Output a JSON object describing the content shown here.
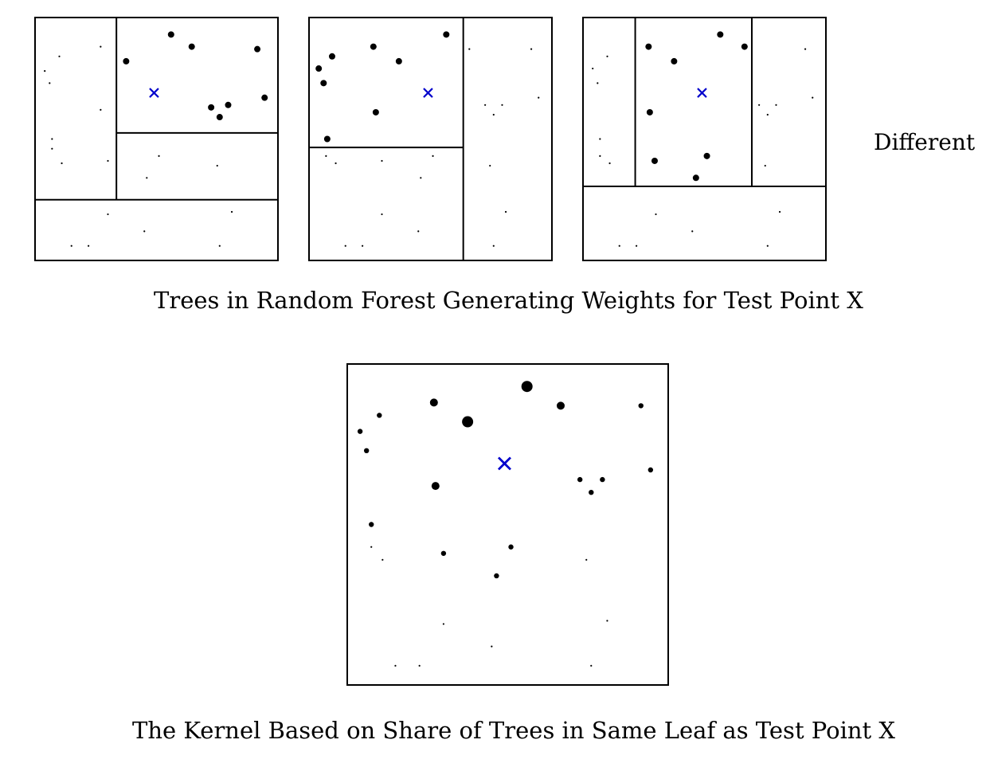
{
  "captions": {
    "trees": "Trees in Random Forest Generating Weights for Test Point X",
    "kernel": "The Kernel Based on Share of Trees in Same Leaf as Test Point X"
  },
  "side_label": "Different",
  "colors": {
    "test_point": "#0000cc",
    "ink": "#000000",
    "background": "#ffffff"
  },
  "trees": [
    {
      "name": "tree-1",
      "x_range": [
        0,
        1
      ],
      "y_range": [
        0,
        1
      ],
      "splits": [
        {
          "axis": "y",
          "at": 0.25,
          "from": 0,
          "to": 1
        },
        {
          "axis": "x",
          "at": 0.335,
          "from": 0.25,
          "to": 1
        },
        {
          "axis": "y",
          "at": 0.525,
          "from": 0.335,
          "to": 1
        }
      ],
      "test_point": [
        0.49,
        0.69
      ],
      "in_leaf": [
        [
          0.375,
          0.82
        ],
        [
          0.56,
          0.93
        ],
        [
          0.645,
          0.88
        ],
        [
          0.915,
          0.87
        ],
        [
          0.945,
          0.67
        ],
        [
          0.725,
          0.63
        ],
        [
          0.795,
          0.64
        ],
        [
          0.76,
          0.59
        ]
      ],
      "out_leaf": [
        [
          0.1,
          0.84
        ],
        [
          0.27,
          0.88
        ],
        [
          0.04,
          0.78
        ],
        [
          0.06,
          0.73
        ],
        [
          0.27,
          0.62
        ],
        [
          0.07,
          0.5
        ],
        [
          0.07,
          0.46
        ],
        [
          0.11,
          0.4
        ],
        [
          0.3,
          0.41
        ],
        [
          0.51,
          0.43
        ],
        [
          0.46,
          0.34
        ],
        [
          0.75,
          0.39
        ],
        [
          0.3,
          0.19
        ],
        [
          0.81,
          0.2
        ],
        [
          0.45,
          0.12
        ],
        [
          0.15,
          0.06
        ],
        [
          0.22,
          0.06
        ],
        [
          0.76,
          0.06
        ]
      ]
    },
    {
      "name": "tree-2",
      "x_range": [
        0,
        1
      ],
      "y_range": [
        0,
        1
      ],
      "splits": [
        {
          "axis": "x",
          "at": 0.635,
          "from": 0,
          "to": 1
        },
        {
          "axis": "y",
          "at": 0.465,
          "from": 0,
          "to": 0.635
        }
      ],
      "test_point": [
        0.49,
        0.69
      ],
      "in_leaf": [
        [
          0.565,
          0.93
        ],
        [
          0.095,
          0.84
        ],
        [
          0.265,
          0.88
        ],
        [
          0.37,
          0.82
        ],
        [
          0.04,
          0.79
        ],
        [
          0.06,
          0.73
        ],
        [
          0.275,
          0.61
        ],
        [
          0.075,
          0.5
        ]
      ],
      "out_leaf": [
        [
          0.66,
          0.87
        ],
        [
          0.915,
          0.87
        ],
        [
          0.945,
          0.67
        ],
        [
          0.725,
          0.64
        ],
        [
          0.795,
          0.64
        ],
        [
          0.76,
          0.6
        ],
        [
          0.745,
          0.39
        ],
        [
          0.07,
          0.43
        ],
        [
          0.11,
          0.4
        ],
        [
          0.3,
          0.41
        ],
        [
          0.51,
          0.43
        ],
        [
          0.46,
          0.34
        ],
        [
          0.3,
          0.19
        ],
        [
          0.81,
          0.2
        ],
        [
          0.45,
          0.12
        ],
        [
          0.15,
          0.06
        ],
        [
          0.22,
          0.06
        ],
        [
          0.76,
          0.06
        ]
      ]
    },
    {
      "name": "tree-3",
      "x_range": [
        0,
        1
      ],
      "y_range": [
        0,
        1
      ],
      "splits": [
        {
          "axis": "y",
          "at": 0.305,
          "from": 0,
          "to": 1
        },
        {
          "axis": "x",
          "at": 0.215,
          "from": 0.305,
          "to": 1
        },
        {
          "axis": "x",
          "at": 0.695,
          "from": 0.305,
          "to": 1
        }
      ],
      "test_point": [
        0.49,
        0.69
      ],
      "in_leaf": [
        [
          0.565,
          0.93
        ],
        [
          0.665,
          0.88
        ],
        [
          0.27,
          0.88
        ],
        [
          0.375,
          0.82
        ],
        [
          0.275,
          0.61
        ],
        [
          0.295,
          0.41
        ],
        [
          0.51,
          0.43
        ],
        [
          0.465,
          0.34
        ]
      ],
      "out_leaf": [
        [
          0.1,
          0.84
        ],
        [
          0.915,
          0.87
        ],
        [
          0.945,
          0.67
        ],
        [
          0.725,
          0.64
        ],
        [
          0.795,
          0.64
        ],
        [
          0.76,
          0.6
        ],
        [
          0.04,
          0.79
        ],
        [
          0.06,
          0.73
        ],
        [
          0.07,
          0.5
        ],
        [
          0.07,
          0.43
        ],
        [
          0.11,
          0.4
        ],
        [
          0.75,
          0.39
        ],
        [
          0.3,
          0.19
        ],
        [
          0.81,
          0.2
        ],
        [
          0.45,
          0.12
        ],
        [
          0.15,
          0.06
        ],
        [
          0.22,
          0.06
        ],
        [
          0.76,
          0.06
        ]
      ]
    }
  ],
  "kernel": {
    "x_range": [
      0,
      1
    ],
    "y_range": [
      0,
      1
    ],
    "test_point": [
      0.49,
      0.69
    ],
    "points": [
      {
        "x": 0.375,
        "y": 0.82,
        "weight": 3
      },
      {
        "x": 0.56,
        "y": 0.93,
        "weight": 3
      },
      {
        "x": 0.27,
        "y": 0.88,
        "weight": 2
      },
      {
        "x": 0.665,
        "y": 0.87,
        "weight": 2
      },
      {
        "x": 0.275,
        "y": 0.62,
        "weight": 2
      },
      {
        "x": 0.1,
        "y": 0.84,
        "weight": 1
      },
      {
        "x": 0.915,
        "y": 0.87,
        "weight": 1
      },
      {
        "x": 0.04,
        "y": 0.79,
        "weight": 1
      },
      {
        "x": 0.06,
        "y": 0.73,
        "weight": 1
      },
      {
        "x": 0.945,
        "y": 0.67,
        "weight": 1
      },
      {
        "x": 0.725,
        "y": 0.64,
        "weight": 1
      },
      {
        "x": 0.795,
        "y": 0.64,
        "weight": 1
      },
      {
        "x": 0.76,
        "y": 0.6,
        "weight": 1
      },
      {
        "x": 0.075,
        "y": 0.5,
        "weight": 1
      },
      {
        "x": 0.3,
        "y": 0.41,
        "weight": 1
      },
      {
        "x": 0.51,
        "y": 0.43,
        "weight": 1
      },
      {
        "x": 0.465,
        "y": 0.34,
        "weight": 1
      },
      {
        "x": 0.075,
        "y": 0.43,
        "weight": 0
      },
      {
        "x": 0.11,
        "y": 0.39,
        "weight": 0
      },
      {
        "x": 0.745,
        "y": 0.39,
        "weight": 0
      },
      {
        "x": 0.3,
        "y": 0.19,
        "weight": 0
      },
      {
        "x": 0.81,
        "y": 0.2,
        "weight": 0
      },
      {
        "x": 0.45,
        "y": 0.12,
        "weight": 0
      },
      {
        "x": 0.15,
        "y": 0.06,
        "weight": 0
      },
      {
        "x": 0.225,
        "y": 0.06,
        "weight": 0
      },
      {
        "x": 0.76,
        "y": 0.06,
        "weight": 0
      }
    ]
  }
}
